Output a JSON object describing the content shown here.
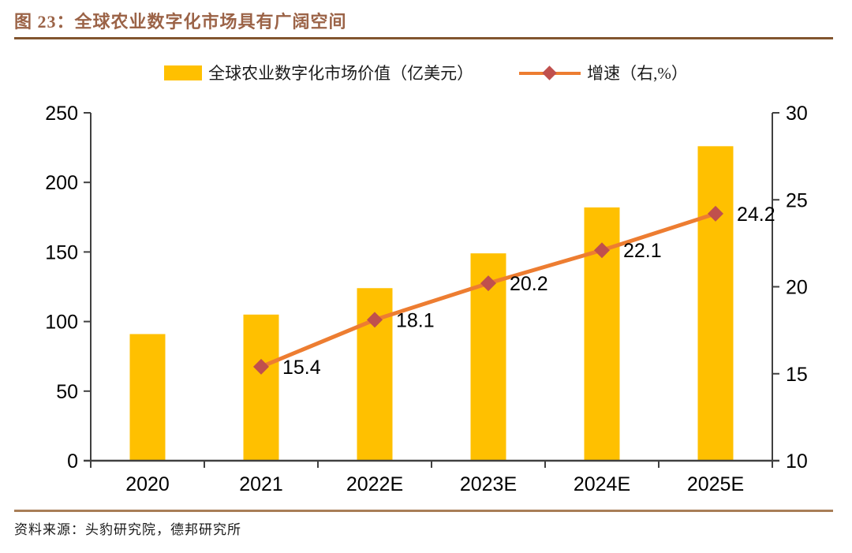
{
  "figure": {
    "title": "图 23：全球农业数字化市场具有广阔空间",
    "source": "资料来源：头豹研究院，德邦研究所"
  },
  "colors": {
    "title_text": "#9B6347",
    "title_rule": "#82552F",
    "source_rule": "#A87E57",
    "bar": "#FFC000",
    "line": "#ED7D31",
    "marker": "#C0504D",
    "axis": "#404040",
    "label_text": "#000000"
  },
  "legend": {
    "items": [
      {
        "label": "全球农业数字化市场价值（亿美元）",
        "swatch": "bar",
        "color": "#FFC000"
      },
      {
        "label": "增速（右,%）",
        "swatch": "line-diamond",
        "line_color": "#ED7D31",
        "marker_color": "#C0504D"
      }
    ]
  },
  "chart_data": {
    "type": "bar",
    "subtype": "bar+line-combo",
    "categories": [
      "2020",
      "2021",
      "2022E",
      "2023E",
      "2024E",
      "2025E"
    ],
    "series": [
      {
        "name": "全球农业数字化市场价值（亿美元）",
        "type": "bar",
        "axis": "left",
        "values": [
          91,
          105,
          124,
          149,
          182,
          226
        ],
        "color": "#FFC000"
      },
      {
        "name": "增速（右,%）",
        "type": "line",
        "axis": "right",
        "values": [
          null,
          15.4,
          18.1,
          20.2,
          22.1,
          24.2
        ],
        "labels": [
          "",
          "15.4",
          "18.1",
          "20.2",
          "22.1",
          "24.2"
        ],
        "color": "#ED7D31",
        "marker": "diamond",
        "marker_color": "#C0504D"
      }
    ],
    "left_axis": {
      "min": 0,
      "max": 250,
      "step": 50
    },
    "right_axis": {
      "min": 10,
      "max": 30,
      "step": 5
    },
    "grid": false,
    "legend_position": "top"
  }
}
